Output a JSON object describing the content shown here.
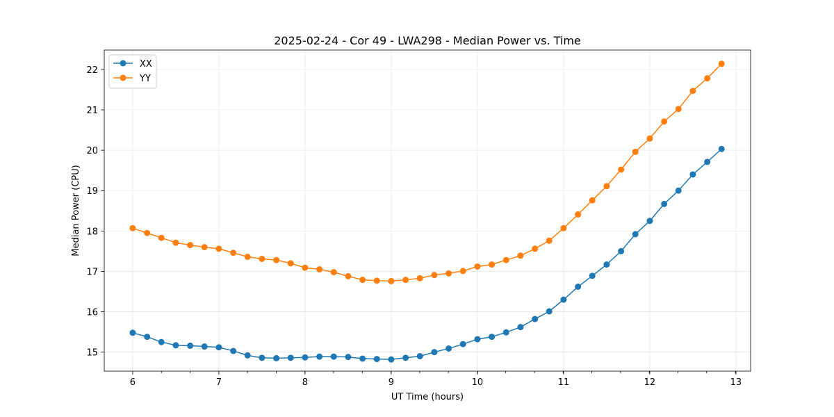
{
  "chart_data": {
    "type": "line",
    "title": "2025-02-24 - Cor 49 - LWA298 - Median Power vs. Time",
    "xlabel": "UT Time (hours)",
    "ylabel": "Median Power (CPU)",
    "xlim": [
      5.67,
      13.17
    ],
    "ylim": [
      14.53,
      22.48
    ],
    "xticks": [
      6,
      7,
      8,
      9,
      10,
      11,
      12,
      13
    ],
    "xtick_labels": [
      "6",
      "7",
      "8",
      "9",
      "10",
      "11",
      "12",
      "13"
    ],
    "x_minor_step": 0.333,
    "yticks": [
      15,
      16,
      17,
      18,
      19,
      20,
      21,
      22
    ],
    "ytick_labels": [
      "15",
      "16",
      "17",
      "18",
      "19",
      "20",
      "21",
      "22"
    ],
    "grid": true,
    "legend_position": "top-left",
    "x": [
      6.0,
      6.167,
      6.333,
      6.5,
      6.667,
      6.833,
      7.0,
      7.167,
      7.333,
      7.5,
      7.667,
      7.833,
      8.0,
      8.167,
      8.333,
      8.5,
      8.667,
      8.833,
      9.0,
      9.167,
      9.333,
      9.5,
      9.667,
      9.833,
      10.0,
      10.167,
      10.333,
      10.5,
      10.667,
      10.833,
      11.0,
      11.167,
      11.333,
      11.5,
      11.667,
      11.833,
      12.0,
      12.167,
      12.333,
      12.5,
      12.667,
      12.833
    ],
    "series": [
      {
        "name": "XX",
        "color": "#1f77b4",
        "values": [
          15.48,
          15.38,
          15.25,
          15.17,
          15.16,
          15.14,
          15.12,
          15.03,
          14.92,
          14.86,
          14.85,
          14.86,
          14.87,
          14.89,
          14.89,
          14.88,
          14.84,
          14.83,
          14.82,
          14.86,
          14.9,
          15.0,
          15.09,
          15.2,
          15.32,
          15.38,
          15.49,
          15.62,
          15.82,
          16.01,
          16.3,
          16.62,
          16.89,
          17.17,
          17.5,
          17.92,
          18.25,
          18.67,
          19.0,
          19.4,
          19.71,
          20.03
        ]
      },
      {
        "name": "YY",
        "color": "#ff7f0e",
        "values": [
          18.07,
          17.95,
          17.83,
          17.71,
          17.65,
          17.6,
          17.56,
          17.46,
          17.36,
          17.31,
          17.28,
          17.2,
          17.09,
          17.05,
          16.98,
          16.88,
          16.79,
          16.77,
          16.76,
          16.79,
          16.83,
          16.91,
          16.95,
          17.01,
          17.12,
          17.17,
          17.28,
          17.39,
          17.56,
          17.76,
          18.07,
          18.41,
          18.76,
          19.11,
          19.52,
          19.96,
          20.29,
          20.71,
          21.02,
          21.47,
          21.78,
          22.14
        ]
      }
    ]
  }
}
